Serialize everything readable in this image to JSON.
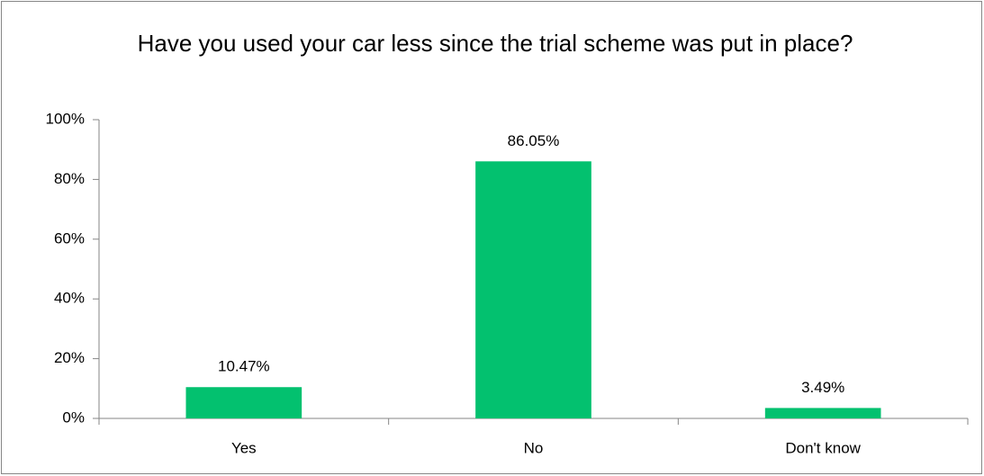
{
  "chart_data": {
    "type": "bar",
    "title": "Have you used your car less since the trial scheme was put in place?",
    "categories": [
      "Yes",
      "No",
      "Don't know"
    ],
    "values": [
      10.47,
      86.05,
      3.49
    ],
    "value_labels": [
      "10.47%",
      "86.05%",
      "3.49%"
    ],
    "color": "#03c16f",
    "ylim": [
      0,
      100
    ],
    "yticks": [
      {
        "value": 0,
        "label": "0%"
      },
      {
        "value": 20,
        "label": "20%"
      },
      {
        "value": 40,
        "label": "40%"
      },
      {
        "value": 60,
        "label": "60%"
      },
      {
        "value": 80,
        "label": "80%"
      },
      {
        "value": 100,
        "label": "100%"
      }
    ],
    "grid": false
  }
}
